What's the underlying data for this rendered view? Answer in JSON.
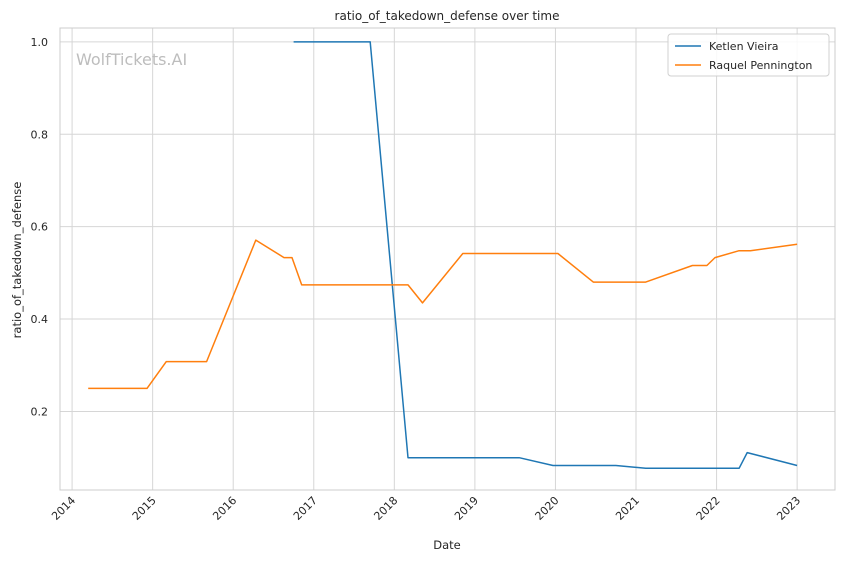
{
  "chart_data": {
    "type": "line",
    "title": "ratio_of_takedown_defense over time",
    "xlabel": "Date",
    "ylabel": "ratio_of_takedown_defense",
    "watermark": "WolfTickets.AI",
    "xlim": [
      2013.85,
      2023.47
    ],
    "ylim": [
      0.03,
      1.03
    ],
    "x_ticks": [
      2014,
      2015,
      2016,
      2017,
      2018,
      2019,
      2020,
      2021,
      2022,
      2023
    ],
    "x_tick_labels": [
      "2014",
      "2015",
      "2016",
      "2017",
      "2018",
      "2019",
      "2020",
      "2021",
      "2022",
      "2023"
    ],
    "y_ticks": [
      0.2,
      0.4,
      0.6,
      0.8,
      1.0
    ],
    "y_tick_labels": [
      "0.2",
      "0.4",
      "0.6",
      "0.8",
      "1.0"
    ],
    "grid": true,
    "legend_position": "top-right",
    "series": [
      {
        "name": "Ketlen Vieira",
        "color": "#1f77b4",
        "points": [
          [
            2016.75,
            1.0
          ],
          [
            2017.7,
            1.0
          ],
          [
            2018.17,
            0.1
          ],
          [
            2019.55,
            0.1
          ],
          [
            2019.97,
            0.083
          ],
          [
            2020.75,
            0.083
          ],
          [
            2021.12,
            0.077
          ],
          [
            2022.28,
            0.077
          ],
          [
            2022.38,
            0.111
          ],
          [
            2023.0,
            0.083
          ]
        ]
      },
      {
        "name": "Raquel Pennington",
        "color": "#ff7f0e",
        "points": [
          [
            2014.2,
            0.25
          ],
          [
            2014.93,
            0.25
          ],
          [
            2015.17,
            0.308
          ],
          [
            2015.67,
            0.308
          ],
          [
            2016.28,
            0.571
          ],
          [
            2016.63,
            0.533
          ],
          [
            2016.73,
            0.533
          ],
          [
            2016.85,
            0.474
          ],
          [
            2018.17,
            0.474
          ],
          [
            2018.35,
            0.435
          ],
          [
            2018.85,
            0.542
          ],
          [
            2020.03,
            0.542
          ],
          [
            2020.47,
            0.48
          ],
          [
            2021.12,
            0.48
          ],
          [
            2021.7,
            0.516
          ],
          [
            2021.88,
            0.516
          ],
          [
            2021.98,
            0.533
          ],
          [
            2022.28,
            0.548
          ],
          [
            2022.42,
            0.548
          ],
          [
            2023.0,
            0.562
          ]
        ]
      }
    ]
  }
}
